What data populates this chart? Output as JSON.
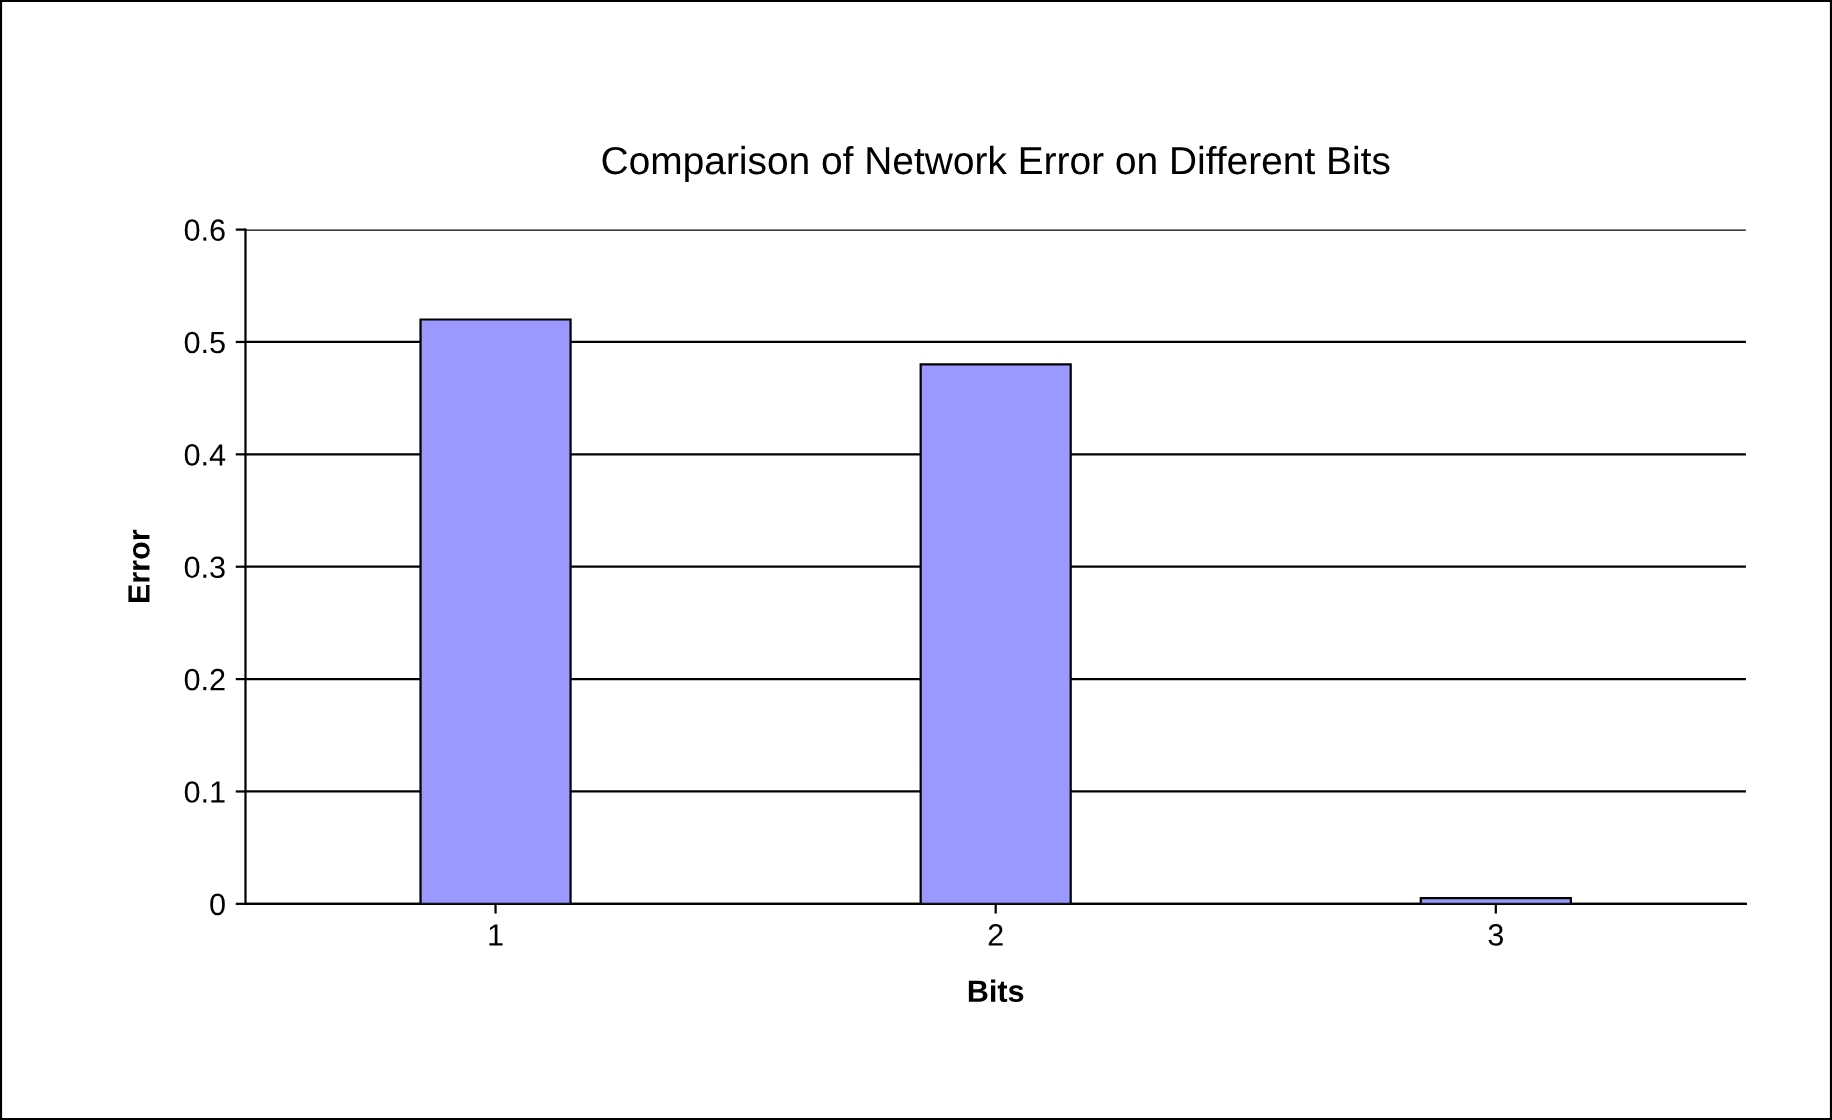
{
  "chart_data": {
    "type": "bar",
    "title": "Comparison of Network Error on Different Bits",
    "xlabel": "Bits",
    "ylabel": "Error",
    "categories": [
      "1",
      "2",
      "3"
    ],
    "values": [
      0.52,
      0.48,
      0.005
    ],
    "color": "#9999ff",
    "ylim": [
      0,
      0.6
    ],
    "yticks": [
      0,
      0.1,
      0.2,
      0.3,
      0.4,
      0.5,
      0.6
    ],
    "grid": "y",
    "legend": false
  }
}
